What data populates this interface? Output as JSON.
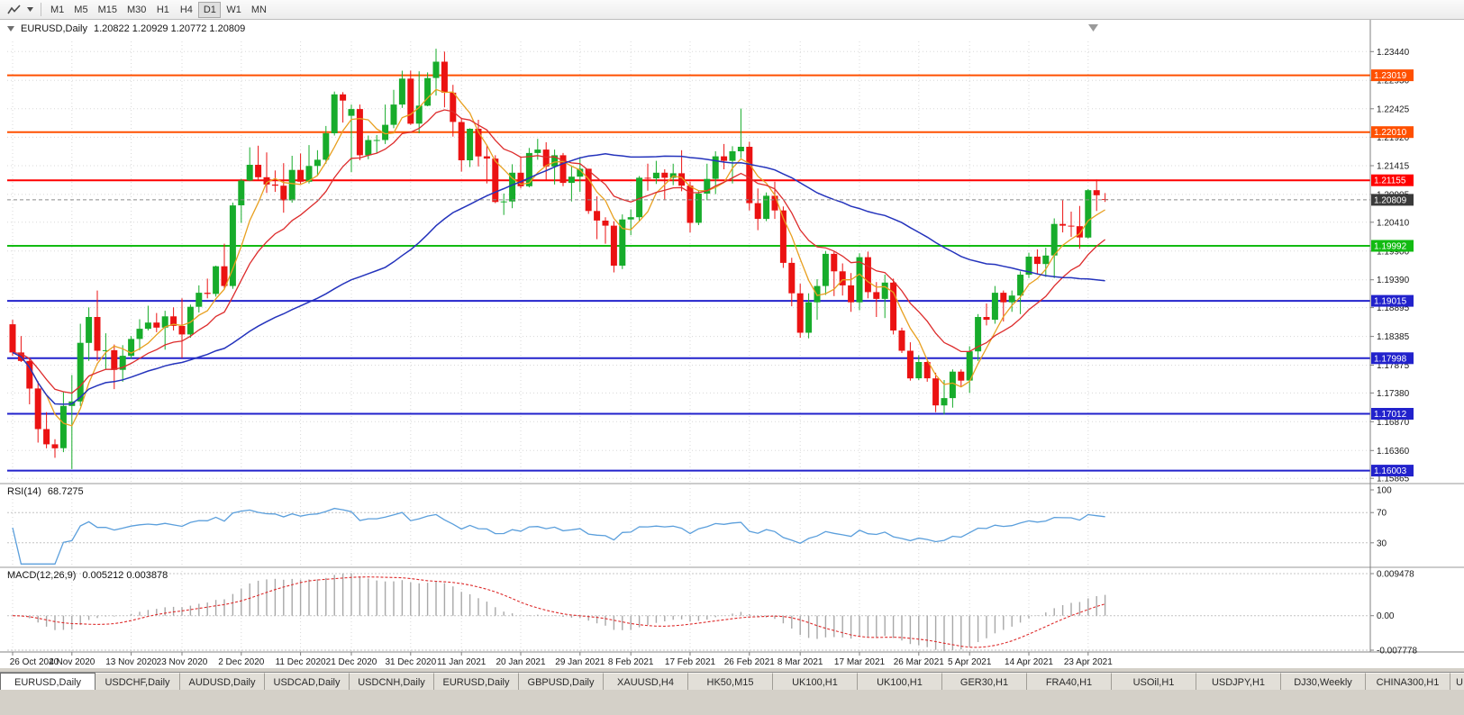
{
  "toolbar": {
    "timeframes": [
      "M1",
      "M5",
      "M15",
      "M30",
      "H1",
      "H4",
      "D1",
      "W1",
      "MN"
    ],
    "active_timeframe": "D1"
  },
  "chart": {
    "symbol_title": "EURUSD,Daily",
    "ohlc": "1.20822 1.20929 1.20772 1.20809",
    "open": "1.20822",
    "high": "1.20929",
    "low": "1.20772",
    "close": "1.20809",
    "current_price": "1.20809",
    "hlines": [
      {
        "label": "1.23019",
        "price": 1.23019,
        "color": "#FF5000"
      },
      {
        "label": "1.22010",
        "price": 1.2201,
        "color": "#FF5000"
      },
      {
        "label": "1.21155",
        "price": 1.21155,
        "color": "#FF0000"
      },
      {
        "label": "1.19992",
        "price": 1.19992,
        "color": "#12BB12"
      },
      {
        "label": "1.19015",
        "price": 1.19015,
        "color": "#2222CC"
      },
      {
        "label": "1.17998",
        "price": 1.17998,
        "color": "#2222CC"
      },
      {
        "label": "1.17012",
        "price": 1.17012,
        "color": "#2222CC"
      },
      {
        "label": "1.16003",
        "price": 1.16003,
        "color": "#2222CC"
      }
    ],
    "colors": {
      "bull": "#17AC2B",
      "bear": "#EB1212",
      "ma_fast": "#E8A020",
      "ma_mid": "#DD2C2C",
      "ma_slow": "#2433BC",
      "grid": "#D8D8D8",
      "bid_badge": "#3A3A3A"
    }
  },
  "rsi": {
    "label": "RSI(14)",
    "value": "68.7275",
    "period": 14,
    "ticks": [
      "100",
      "70",
      "30"
    ],
    "levels": [
      70,
      30
    ],
    "color": "#5B9FDC"
  },
  "macd": {
    "label": "MACD(12,26,9)",
    "value": "0.005212 0.003878",
    "ticks": [
      "0.009478",
      "0.00",
      "-0.007778"
    ],
    "hist_color": "#A8A8A8",
    "signal_color": "#DD2C2C"
  },
  "chart_data": {
    "type": "candlestick",
    "symbol": "EURUSD",
    "timeframe": "Daily",
    "y_ticks": [
      "1.23440",
      "1.22930",
      "1.22425",
      "1.21920",
      "1.21415",
      "1.20905",
      "1.20410",
      "1.19900",
      "1.19390",
      "1.18895",
      "1.18385",
      "1.17875",
      "1.17380",
      "1.16870",
      "1.16360",
      "1.15865"
    ],
    "x_labels": [
      "26 Oct 2020",
      "4 Nov 2020",
      "13 Nov 2020",
      "23 Nov 2020",
      "2 Dec 2020",
      "11 Dec 2020",
      "21 Dec 2020",
      "31 Dec 2020",
      "11 Jan 2021",
      "20 Jan 2021",
      "29 Jan 2021",
      "8 Feb 2021",
      "17 Feb 2021",
      "26 Feb 2021",
      "8 Mar 2021",
      "17 Mar 2021",
      "26 Mar 2021",
      "5 Apr 2021",
      "14 Apr 2021",
      "23 Apr 2021"
    ],
    "x_label_indices": [
      0,
      7,
      14,
      20,
      27,
      34,
      40,
      47,
      53,
      60,
      67,
      73,
      80,
      87,
      93,
      100,
      107,
      113,
      120,
      127
    ],
    "ohlc_format": [
      "open",
      "high",
      "low",
      "close"
    ],
    "candles": [
      [
        1.186,
        1.1868,
        1.1804,
        1.181
      ],
      [
        1.181,
        1.1839,
        1.1793,
        1.1795
      ],
      [
        1.1795,
        1.18,
        1.1718,
        1.1746
      ],
      [
        1.1746,
        1.1759,
        1.165,
        1.1674
      ],
      [
        1.1674,
        1.1704,
        1.164,
        1.1647
      ],
      [
        1.1647,
        1.1656,
        1.1623,
        1.164
      ],
      [
        1.164,
        1.174,
        1.1633,
        1.1715
      ],
      [
        1.1715,
        1.177,
        1.1603,
        1.1723
      ],
      [
        1.1723,
        1.1861,
        1.1715,
        1.1827
      ],
      [
        1.1827,
        1.189,
        1.1795,
        1.1873
      ],
      [
        1.1873,
        1.192,
        1.1795,
        1.1813
      ],
      [
        1.1813,
        1.1844,
        1.178,
        1.1814
      ],
      [
        1.1814,
        1.1824,
        1.1745,
        1.1779
      ],
      [
        1.1779,
        1.1823,
        1.1758,
        1.1804
      ],
      [
        1.1804,
        1.1839,
        1.1799,
        1.1834
      ],
      [
        1.1834,
        1.1869,
        1.1814,
        1.1852
      ],
      [
        1.1852,
        1.1893,
        1.1849,
        1.1863
      ],
      [
        1.1863,
        1.188,
        1.1846,
        1.1854
      ],
      [
        1.1854,
        1.1884,
        1.1815,
        1.1874
      ],
      [
        1.1874,
        1.189,
        1.1849,
        1.1857
      ],
      [
        1.1857,
        1.1906,
        1.18,
        1.1842
      ],
      [
        1.1842,
        1.1895,
        1.1836,
        1.1891
      ],
      [
        1.1891,
        1.1929,
        1.1881,
        1.1916
      ],
      [
        1.1916,
        1.1941,
        1.1906,
        1.1914
      ],
      [
        1.1914,
        1.1964,
        1.1909,
        1.1963
      ],
      [
        1.1963,
        1.2003,
        1.1923,
        1.1928
      ],
      [
        1.1928,
        1.2076,
        1.1923,
        1.2071
      ],
      [
        1.2071,
        1.2118,
        1.204,
        1.2115
      ],
      [
        1.2115,
        1.2174,
        1.2114,
        1.2143
      ],
      [
        1.2143,
        1.2177,
        1.2116,
        1.2121
      ],
      [
        1.2121,
        1.2165,
        1.2093,
        1.2108
      ],
      [
        1.2108,
        1.2133,
        1.2095,
        1.2106
      ],
      [
        1.2106,
        1.2146,
        1.2058,
        1.208
      ],
      [
        1.208,
        1.2159,
        1.2076,
        1.2134
      ],
      [
        1.2134,
        1.2163,
        1.2109,
        1.2113
      ],
      [
        1.2113,
        1.2178,
        1.211,
        1.2141
      ],
      [
        1.2141,
        1.2169,
        1.2123,
        1.2152
      ],
      [
        1.2152,
        1.2212,
        1.2145,
        1.2199
      ],
      [
        1.2199,
        1.2273,
        1.2195,
        1.2268
      ],
      [
        1.2268,
        1.2272,
        1.2218,
        1.2257
      ],
      [
        1.223,
        1.225,
        1.213,
        1.2242
      ],
      [
        1.2242,
        1.225,
        1.2151,
        1.216
      ],
      [
        1.216,
        1.2195,
        1.2153,
        1.2187
      ],
      [
        1.2187,
        1.2196,
        1.2163,
        1.2187
      ],
      [
        1.2187,
        1.225,
        1.218,
        1.2214
      ],
      [
        1.2214,
        1.2276,
        1.2208,
        1.225
      ],
      [
        1.225,
        1.231,
        1.2244,
        1.2296
      ],
      [
        1.2296,
        1.231,
        1.2214,
        1.2216
      ],
      [
        1.2216,
        1.2309,
        1.2199,
        1.2248
      ],
      [
        1.2248,
        1.2307,
        1.2247,
        1.2297
      ],
      [
        1.2297,
        1.2349,
        1.2266,
        1.2326
      ],
      [
        1.2326,
        1.2344,
        1.2245,
        1.2271
      ],
      [
        1.2271,
        1.2285,
        1.2193,
        1.2219
      ],
      [
        1.2219,
        1.2226,
        1.2131,
        1.2151
      ],
      [
        1.2151,
        1.2208,
        1.2139,
        1.2207
      ],
      [
        1.2207,
        1.2223,
        1.214,
        1.2158
      ],
      [
        1.2158,
        1.2178,
        1.211,
        1.2154
      ],
      [
        1.2154,
        1.216,
        1.2075,
        1.2077
      ],
      [
        1.2077,
        1.2092,
        1.2054,
        1.2078
      ],
      [
        1.2078,
        1.2144,
        1.2066,
        1.2129
      ],
      [
        1.2129,
        1.2158,
        1.2101,
        1.2105
      ],
      [
        1.2105,
        1.2173,
        1.2103,
        1.2164
      ],
      [
        1.2164,
        1.2189,
        1.2152,
        1.217
      ],
      [
        1.217,
        1.2183,
        1.2116,
        1.214
      ],
      [
        1.214,
        1.217,
        1.2108,
        1.216
      ],
      [
        1.216,
        1.2164,
        1.2105,
        1.2111
      ],
      [
        1.2111,
        1.2142,
        1.2078,
        1.2122
      ],
      [
        1.2122,
        1.2157,
        1.2095,
        1.2136
      ],
      [
        1.2136,
        1.2136,
        1.2056,
        1.2061
      ],
      [
        1.2061,
        1.2087,
        1.2011,
        1.2044
      ],
      [
        1.2044,
        1.205,
        1.2003,
        1.2035
      ],
      [
        1.2035,
        1.2043,
        1.1952,
        1.1964
      ],
      [
        1.1964,
        1.2055,
        1.1958,
        1.2046
      ],
      [
        1.2046,
        1.2064,
        1.2018,
        1.205
      ],
      [
        1.205,
        1.2123,
        1.2042,
        1.212
      ],
      [
        1.212,
        1.2145,
        1.2097,
        1.2119
      ],
      [
        1.2119,
        1.215,
        1.2109,
        1.2129
      ],
      [
        1.2129,
        1.2135,
        1.208,
        1.212
      ],
      [
        1.212,
        1.2145,
        1.2107,
        1.2128
      ],
      [
        1.2128,
        1.2169,
        1.2096,
        1.2106
      ],
      [
        1.2106,
        1.2113,
        1.2023,
        1.204
      ],
      [
        1.204,
        1.2098,
        1.2036,
        1.2092
      ],
      [
        1.2092,
        1.2145,
        1.208,
        1.2118
      ],
      [
        1.2118,
        1.2167,
        1.2091,
        1.2158
      ],
      [
        1.2158,
        1.218,
        1.2135,
        1.215
      ],
      [
        1.215,
        1.2176,
        1.211,
        1.2167
      ],
      [
        1.2167,
        1.2243,
        1.2155,
        1.2175
      ],
      [
        1.2175,
        1.2184,
        1.2062,
        1.2075
      ],
      [
        1.2075,
        1.2101,
        1.2027,
        1.2047
      ],
      [
        1.2047,
        1.2094,
        1.2043,
        1.2088
      ],
      [
        1.2088,
        1.2113,
        1.2047,
        1.2062
      ],
      [
        1.2062,
        1.2069,
        1.196,
        1.1969
      ],
      [
        1.1969,
        1.1978,
        1.1892,
        1.1915
      ],
      [
        1.1915,
        1.1932,
        1.1836,
        1.1845
      ],
      [
        1.1845,
        1.1915,
        1.1835,
        1.1899
      ],
      [
        1.1899,
        1.194,
        1.1868,
        1.1928
      ],
      [
        1.1928,
        1.199,
        1.1912,
        1.1985
      ],
      [
        1.1985,
        1.1989,
        1.191,
        1.1954
      ],
      [
        1.1954,
        1.1968,
        1.1911,
        1.1929
      ],
      [
        1.1929,
        1.1951,
        1.1882,
        1.1899
      ],
      [
        1.1899,
        1.1986,
        1.1885,
        1.1979
      ],
      [
        1.1979,
        1.1989,
        1.1906,
        1.1917
      ],
      [
        1.1917,
        1.1935,
        1.1873,
        1.1905
      ],
      [
        1.1905,
        1.1948,
        1.1871,
        1.1934
      ],
      [
        1.1934,
        1.1941,
        1.1842,
        1.1849
      ],
      [
        1.1849,
        1.1854,
        1.1809,
        1.1813
      ],
      [
        1.1813,
        1.1828,
        1.176,
        1.1764
      ],
      [
        1.1764,
        1.1805,
        1.1761,
        1.1793
      ],
      [
        1.1793,
        1.1795,
        1.1758,
        1.1764
      ],
      [
        1.1764,
        1.1774,
        1.1704,
        1.1716
      ],
      [
        1.1716,
        1.1761,
        1.17,
        1.1729
      ],
      [
        1.1729,
        1.178,
        1.1712,
        1.1776
      ],
      [
        1.1776,
        1.178,
        1.1749,
        1.176
      ],
      [
        1.176,
        1.1821,
        1.1738,
        1.1812
      ],
      [
        1.1812,
        1.1878,
        1.1795,
        1.1873
      ],
      [
        1.1873,
        1.1897,
        1.1858,
        1.1868
      ],
      [
        1.1868,
        1.1928,
        1.1861,
        1.1916
      ],
      [
        1.1916,
        1.192,
        1.1865,
        1.1899
      ],
      [
        1.1899,
        1.192,
        1.1882,
        1.1911
      ],
      [
        1.1911,
        1.1954,
        1.1878,
        1.1948
      ],
      [
        1.1948,
        1.1987,
        1.1942,
        1.198
      ],
      [
        1.198,
        1.1993,
        1.1948,
        1.1967
      ],
      [
        1.1967,
        1.1996,
        1.1944,
        1.1982
      ],
      [
        1.1982,
        1.2048,
        1.1942,
        1.2038
      ],
      [
        1.2038,
        1.208,
        1.2023,
        1.2035
      ],
      [
        1.2035,
        1.206,
        1.2015,
        1.2034
      ],
      [
        1.2034,
        1.207,
        1.1994,
        1.2014
      ],
      [
        1.2014,
        1.21,
        1.2012,
        1.2098
      ],
      [
        1.2098,
        1.2117,
        1.2061,
        1.2089
      ],
      [
        1.20822,
        1.20929,
        1.20772,
        1.20809
      ]
    ]
  },
  "tabs": {
    "items": [
      "EURUSD,Daily",
      "USDCHF,Daily",
      "AUDUSD,Daily",
      "USDCAD,Daily",
      "USDCNH,Daily",
      "EURUSD,Daily",
      "GBPUSD,Daily",
      "XAUUSD,H4",
      "HK50,M15",
      "UK100,H1",
      "UK100,H1",
      "GER30,H1",
      "FRA40,H1",
      "USOil,H1",
      "USDJPY,H1",
      "DJ30,Weekly",
      "CHINA300,H1",
      "U"
    ],
    "active_index": 0
  }
}
